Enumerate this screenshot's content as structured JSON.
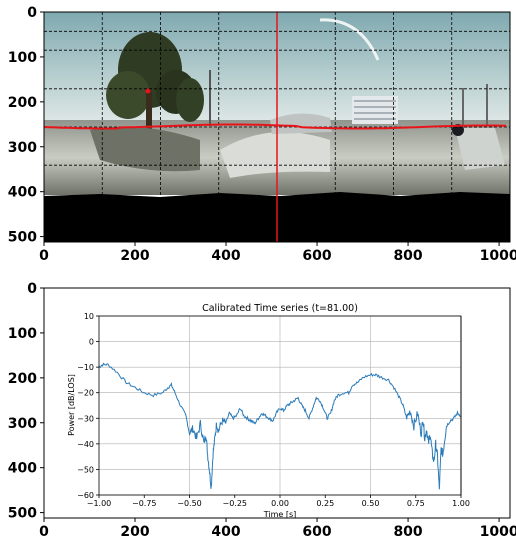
{
  "colors": {
    "red_line": "#e8141a",
    "series": "#2b7bb9",
    "sky": "#6c9aa3",
    "ground": "#9a9d93",
    "tree": "#2e3a20",
    "black": "#000000",
    "grid": "#b0b0b0"
  },
  "panorama": {
    "chart_data": {
      "type": "image",
      "xlim": [
        0,
        1024
      ],
      "ylim": [
        512,
        0
      ],
      "xticks": [
        0,
        200,
        400,
        600,
        800,
        1000
      ],
      "yticks": [
        0,
        100,
        200,
        300,
        400,
        500
      ],
      "grid_x": [
        128,
        256,
        384,
        512,
        640,
        768,
        896
      ],
      "grid_y": [
        43,
        85,
        171,
        256,
        341
      ],
      "cursor_x": 512,
      "horizon_y": 256
    },
    "icons": [
      "tree-icon",
      "building-icon",
      "car-icon",
      "street-lamp-icon"
    ]
  },
  "axes_frame": {
    "chart_data": {
      "type": "frame",
      "xlim": [
        0,
        1024
      ],
      "ylim": [
        512,
        0
      ],
      "xticks": [
        0,
        200,
        400,
        600,
        800,
        1000
      ],
      "yticks": [
        0,
        100,
        200,
        300,
        400,
        500
      ]
    }
  },
  "timeseries": {
    "chart_data": {
      "type": "line",
      "title": "Calibrated Time series (t=81.00)",
      "xlabel": "Time [s]",
      "ylabel": "Power [dB/LOS]",
      "xlim": [
        -1.0,
        1.0
      ],
      "ylim": [
        -60,
        10
      ],
      "xticks": [
        -1.0,
        -0.75,
        -0.5,
        -0.25,
        0.0,
        0.25,
        0.5,
        0.75,
        1.0
      ],
      "xtick_labels": [
        "−1.00",
        "−0.75",
        "−0.50",
        "−0.25",
        "0.00",
        "0.25",
        "0.50",
        "0.75",
        "1.00"
      ],
      "yticks": [
        10,
        0,
        -10,
        -20,
        -30,
        -40,
        -50,
        -60
      ],
      "ytick_labels": [
        "10",
        "0",
        "−10",
        "−20",
        "−30",
        "−40",
        "−50",
        "−60"
      ],
      "grid": true,
      "grid_x": [
        -0.5,
        0.0,
        0.5
      ],
      "cursor_t": 1.0,
      "series": [
        {
          "x": [
            -1.0,
            -0.98,
            -0.95,
            -0.9,
            -0.85,
            -0.8,
            -0.75,
            -0.7,
            -0.65,
            -0.62,
            -0.6,
            -0.58,
            -0.55,
            -0.52,
            -0.5,
            -0.48,
            -0.46,
            -0.44,
            -0.42,
            -0.41,
            -0.4,
            -0.39,
            -0.38,
            -0.37,
            -0.36,
            -0.35,
            -0.34,
            -0.32,
            -0.3,
            -0.28,
            -0.26,
            -0.24,
            -0.22,
            -0.2,
            -0.18,
            -0.16,
            -0.14,
            -0.12,
            -0.1,
            -0.08,
            -0.06,
            -0.04,
            -0.02,
            0.0,
            0.02,
            0.04,
            0.06,
            0.08,
            0.1,
            0.12,
            0.14,
            0.16,
            0.18,
            0.2,
            0.22,
            0.24,
            0.26,
            0.28,
            0.3,
            0.32,
            0.35,
            0.38,
            0.4,
            0.43,
            0.46,
            0.5,
            0.53,
            0.56,
            0.6,
            0.63,
            0.66,
            0.68,
            0.7,
            0.72,
            0.74,
            0.76,
            0.78,
            0.79,
            0.8,
            0.81,
            0.82,
            0.83,
            0.84,
            0.85,
            0.86,
            0.87,
            0.88,
            0.89,
            0.9,
            0.91,
            0.92,
            0.94,
            0.96,
            0.98,
            1.0
          ],
          "y": [
            -10,
            -9,
            -9,
            -12,
            -16,
            -18,
            -20,
            -21,
            -20,
            -18,
            -17,
            -20,
            -25,
            -29,
            -36,
            -34,
            -38,
            -32,
            -40,
            -36,
            -44,
            -50,
            -57,
            -44,
            -38,
            -32,
            -35,
            -31,
            -32,
            -28,
            -30,
            -29,
            -26,
            -29,
            -30,
            -31,
            -32,
            -30,
            -28,
            -29,
            -30,
            -31,
            -28,
            -26,
            -27,
            -25,
            -24,
            -23,
            -22,
            -25,
            -27,
            -30,
            -26,
            -22,
            -23,
            -26,
            -30,
            -28,
            -23,
            -21,
            -20,
            -20,
            -17,
            -16,
            -14,
            -13,
            -13,
            -14,
            -15,
            -18,
            -22,
            -25,
            -30,
            -27,
            -33,
            -28,
            -36,
            -30,
            -38,
            -34,
            -40,
            -36,
            -43,
            -47,
            -40,
            -45,
            -58,
            -42,
            -44,
            -38,
            -33,
            -31,
            -30,
            -28,
            -29
          ]
        }
      ]
    }
  }
}
